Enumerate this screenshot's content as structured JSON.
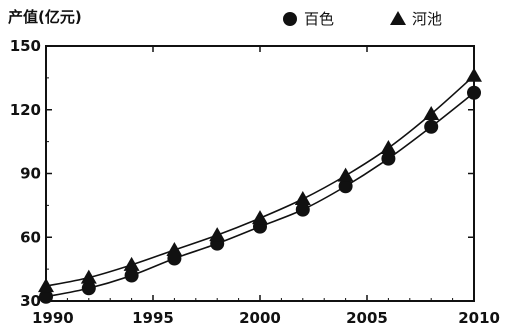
{
  "chart_data": {
    "type": "line",
    "ylabel": "产值(亿元)",
    "xlabel": "",
    "xlim": [
      1990,
      2010
    ],
    "ylim": [
      30,
      150
    ],
    "x_ticks": [
      1990,
      1995,
      2000,
      2005,
      2010
    ],
    "y_ticks": [
      30,
      60,
      90,
      120,
      150
    ],
    "grid": false,
    "legend_position": "top-right",
    "series": [
      {
        "name": "百色",
        "marker": "circle",
        "color": "#111111",
        "x": [
          1990,
          1992,
          1994,
          1996,
          1998,
          2000,
          2002,
          2004,
          2006,
          2008,
          2010
        ],
        "y": [
          32,
          36,
          42,
          50,
          57,
          65,
          73,
          84,
          97,
          112,
          128
        ]
      },
      {
        "name": "河池",
        "marker": "triangle",
        "color": "#111111",
        "x": [
          1990,
          1992,
          1994,
          1996,
          1998,
          2000,
          2002,
          2004,
          2006,
          2008,
          2010
        ],
        "y": [
          37,
          41,
          47,
          54,
          61,
          69,
          78,
          89,
          102,
          118,
          136
        ]
      }
    ]
  }
}
